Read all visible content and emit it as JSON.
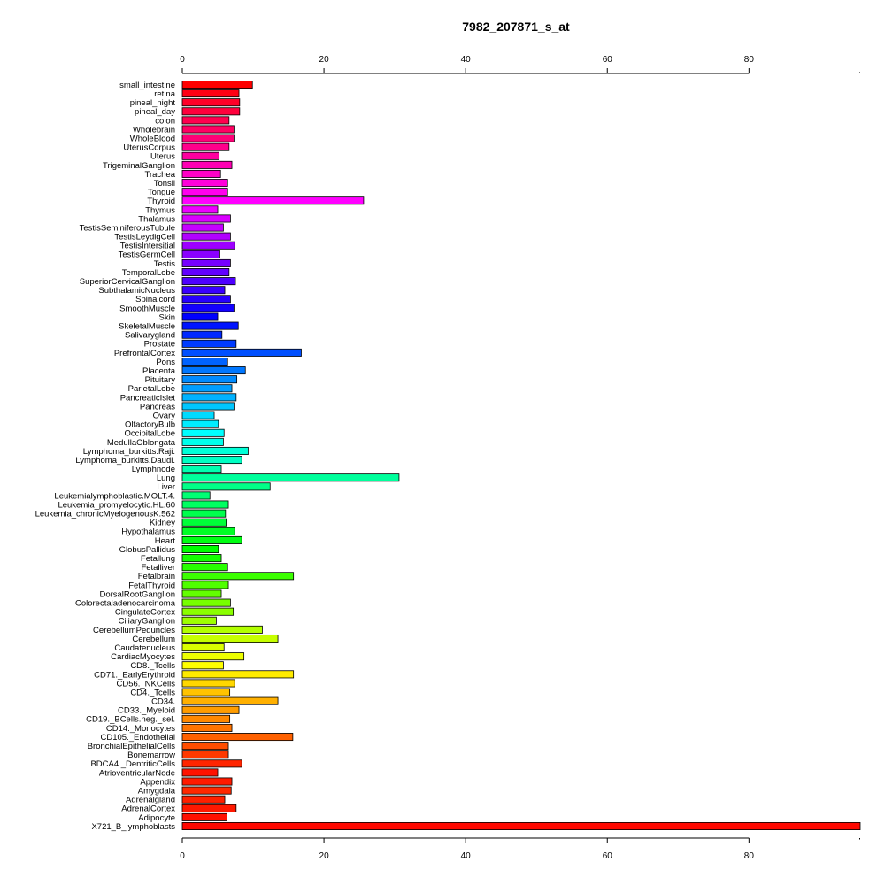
{
  "chart_data": {
    "type": "bar",
    "orientation": "horizontal",
    "title": "7982_207871_s_at",
    "xlabel": "",
    "ylabel": "",
    "xlim": [
      0,
      95.7
    ],
    "xticks": [
      0,
      20,
      40,
      60,
      80
    ],
    "xtick_labels": [
      "0",
      "20",
      "40",
      "60",
      "80"
    ],
    "axis_positions": [
      "top",
      "bottom"
    ],
    "grid": false,
    "legend": "none",
    "categories": [
      "small_intestine",
      "retina",
      "pineal_night",
      "pineal_day",
      "colon",
      "Wholebrain",
      "WholeBlood",
      "UterusCorpus",
      "Uterus",
      "TrigeminalGanglion",
      "Trachea",
      "Tonsil",
      "Tongue",
      "Thyroid",
      "Thymus",
      "Thalamus",
      "TestisSeminiferousTubule",
      "TestisLeydigCell",
      "TestisIntersitial",
      "TestisGermCell",
      "Testis",
      "TemporalLobe",
      "SuperiorCervicalGanglion",
      "SubthalamicNucleus",
      "Spinalcord",
      "SmoothMuscle",
      "Skin",
      "SkeletalMuscle",
      "Salivarygland",
      "Prostate",
      "PrefrontalCortex",
      "Pons",
      "Placenta",
      "Pituitary",
      "ParietalLobe",
      "PancreaticIslet",
      "Pancreas",
      "Ovary",
      "OlfactoryBulb",
      "OccipitalLobe",
      "MedullaOblongata",
      "Lymphoma_burkitts.Raji.",
      "Lymphoma_burkitts.Daudi.",
      "Lymphnode",
      "Lung",
      "Liver",
      "Leukemialymphoblastic.MOLT.4.",
      "Leukemia_promyelocytic.HL.60",
      "Leukemia_chronicMyelogenousK.562",
      "Kidney",
      "Hypothalamus",
      "Heart",
      "GlobusPallidus",
      "Fetallung",
      "Fetalliver",
      "Fetalbrain",
      "FetalThyroid",
      "DorsalRootGanglion",
      "Colorectaladenocarcinoma",
      "CingulateCortex",
      "CiliaryGanglion",
      "CerebellumPeduncles",
      "Cerebellum",
      "Caudatenucleus",
      "CardiacMyocytes",
      "CD8._Tcells",
      "CD71._EarlyErythroid",
      "CD56._NKCells",
      "CD4._Tcells",
      "CD34.",
      "CD33._Myeloid",
      "CD19._BCells.neg._sel.",
      "CD14._Monocytes",
      "CD105._Endothelial",
      "BronchialEpithelialCells",
      "Bonemarrow",
      "BDCA4._DentriticCells",
      "AtrioventricularNode",
      "Appendix",
      "Amygdala",
      "Adrenalgland",
      "AdrenalCortex",
      "Adipocyte",
      "X721_B_lymphoblasts"
    ],
    "values": [
      9.9,
      8.0,
      8.1,
      8.1,
      6.6,
      7.3,
      7.3,
      6.6,
      5.2,
      7.0,
      5.4,
      6.4,
      6.4,
      25.6,
      5.0,
      6.8,
      5.8,
      6.8,
      7.4,
      5.3,
      6.8,
      6.6,
      7.5,
      6.0,
      6.8,
      7.3,
      5.0,
      7.9,
      5.6,
      7.6,
      16.8,
      6.4,
      8.9,
      7.7,
      7.0,
      7.6,
      7.3,
      4.5,
      5.1,
      5.9,
      5.8,
      9.3,
      8.4,
      5.5,
      30.6,
      12.4,
      3.9,
      6.5,
      6.1,
      6.2,
      7.4,
      8.4,
      5.1,
      5.5,
      6.4,
      15.7,
      6.5,
      5.5,
      6.8,
      7.2,
      4.8,
      11.3,
      13.5,
      5.9,
      8.7,
      5.8,
      15.7,
      7.4,
      6.7,
      13.5,
      8.0,
      6.7,
      7.0,
      15.6,
      6.5,
      6.5,
      8.4,
      5.0,
      7.0,
      6.9,
      6.0,
      7.6,
      6.3,
      95.7
    ],
    "colors": [
      "#FF0000",
      "#FF0014",
      "#FF0028",
      "#FF003C",
      "#FF004F",
      "#FF0063",
      "#FF0077",
      "#FF008B",
      "#FF009F",
      "#FF00B3",
      "#FF00C6",
      "#FF00DA",
      "#FF00EE",
      "#FF00FF",
      "#ED00FF",
      "#D900FF",
      "#C500FF",
      "#B100FF",
      "#9D00FF",
      "#8A00FF",
      "#7600FF",
      "#6200FF",
      "#4E00FF",
      "#3A00FF",
      "#2700FF",
      "#1300FF",
      "#0000FF",
      "#0014FF",
      "#0028FF",
      "#003BFF",
      "#004FFF",
      "#0063FF",
      "#0077FF",
      "#008BFF",
      "#009EFF",
      "#00B2FF",
      "#00C6FF",
      "#00DAFF",
      "#00EDFF",
      "#00FFFF",
      "#00FFEB",
      "#00FFD7",
      "#00FFC3",
      "#00FFB0",
      "#00FF9C",
      "#00FF88",
      "#00FF74",
      "#00FF61",
      "#00FF4D",
      "#00FF39",
      "#00FF25",
      "#00FF12",
      "#00FF00",
      "#14FF00",
      "#28FF00",
      "#3BFF00",
      "#4FFF00",
      "#63FF00",
      "#77FF00",
      "#8BFF00",
      "#9EFF00",
      "#B2FF00",
      "#C6FF00",
      "#DAFF00",
      "#EDFF00",
      "#FFFF00",
      "#FFEB00",
      "#FFD700",
      "#FFC300",
      "#FFB000",
      "#FF9C00",
      "#FF8800",
      "#FF7400",
      "#FF6100",
      "#FF4D00",
      "#FF3900",
      "#FF2500",
      "#FF1200",
      "#FF1A00",
      "#FF2800",
      "#FF2000",
      "#FF1800",
      "#FF1000",
      "#FF0800"
    ]
  }
}
